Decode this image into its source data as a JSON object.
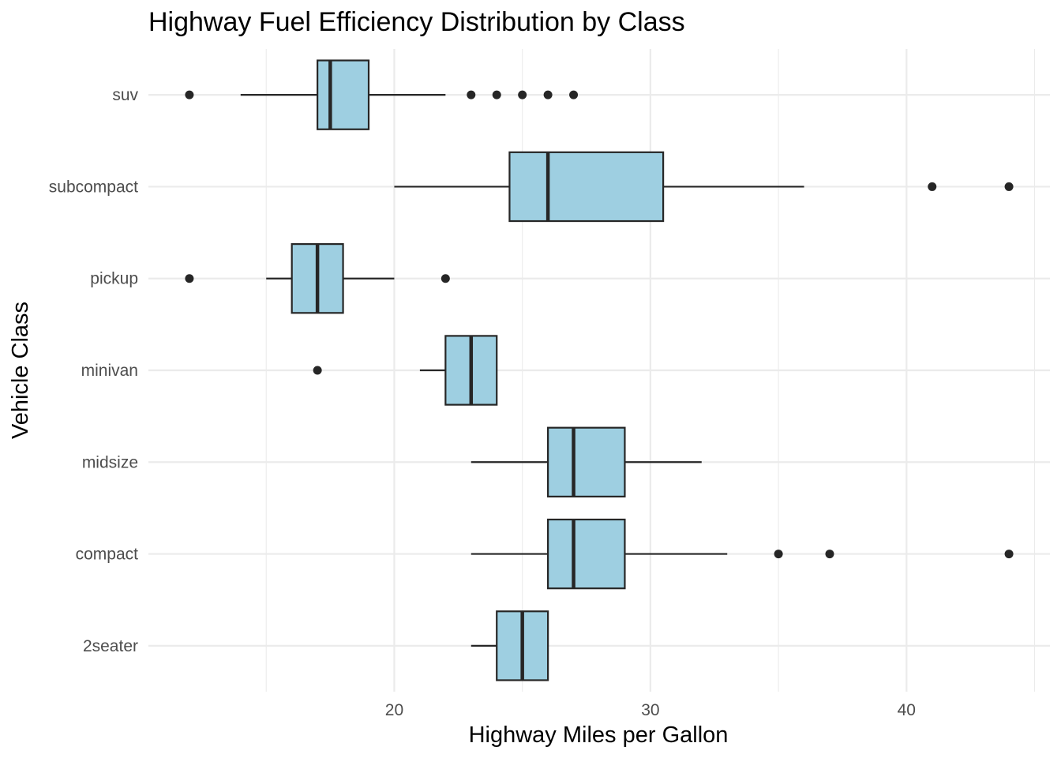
{
  "chart_data": {
    "type": "boxplot",
    "orientation": "horizontal",
    "title": "Highway Fuel Efficiency Distribution by Class",
    "xlabel": "Highway Miles per Gallon",
    "ylabel": "Vehicle Class",
    "xlim": [
      10.4,
      45.6
    ],
    "xticks": [
      20,
      30,
      40
    ],
    "x_minor_ticks": [
      15,
      25,
      35,
      45
    ],
    "grid": true,
    "legend": "none",
    "colors": {
      "box_fill": "#9ecfe1",
      "stroke": "#262626",
      "grid": "#ebebeb"
    },
    "categories": [
      "suv",
      "subcompact",
      "pickup",
      "minivan",
      "midsize",
      "compact",
      "2seater"
    ],
    "boxes": [
      {
        "category": "suv",
        "whisker_low": 14,
        "q1": 17,
        "median": 17.5,
        "q3": 19,
        "whisker_high": 22,
        "outliers": [
          12,
          23,
          24,
          25,
          26,
          27
        ]
      },
      {
        "category": "subcompact",
        "whisker_low": 20,
        "q1": 24.5,
        "median": 26,
        "q3": 30.5,
        "whisker_high": 36,
        "outliers": [
          41,
          44
        ]
      },
      {
        "category": "pickup",
        "whisker_low": 15,
        "q1": 16,
        "median": 17,
        "q3": 18,
        "whisker_high": 20,
        "outliers": [
          12,
          22
        ]
      },
      {
        "category": "minivan",
        "whisker_low": 21,
        "q1": 22,
        "median": 23,
        "q3": 24,
        "whisker_high": 24,
        "outliers": [
          17
        ]
      },
      {
        "category": "midsize",
        "whisker_low": 23,
        "q1": 26,
        "median": 27,
        "q3": 29,
        "whisker_high": 32,
        "outliers": []
      },
      {
        "category": "compact",
        "whisker_low": 23,
        "q1": 26,
        "median": 27,
        "q3": 29,
        "whisker_high": 33,
        "outliers": [
          35,
          37,
          44
        ]
      },
      {
        "category": "2seater",
        "whisker_low": 23,
        "q1": 24,
        "median": 25,
        "q3": 26,
        "whisker_high": 26,
        "outliers": []
      }
    ]
  }
}
